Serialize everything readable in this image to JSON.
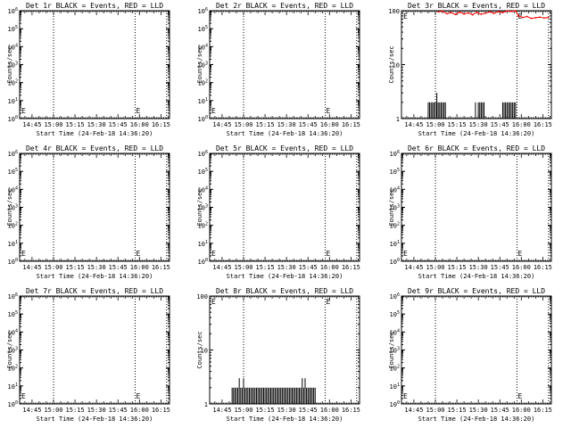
{
  "colors": {
    "background": "#ffffff",
    "events": "#000000",
    "lld": "#ff0000",
    "axis": "#000000"
  },
  "chart_data": [
    {
      "type": "line",
      "title": "Det 1r BLACK = Events, RED = LLD",
      "xlabel": "Start Time (24-Feb-18 14:36:20)",
      "ylabel": "Counts/sec",
      "x_ticks": [
        "14:45",
        "15:00",
        "15:15",
        "15:30",
        "15:45",
        "16:00",
        "16:15"
      ],
      "y_scale": "log",
      "ylim": [
        1,
        1000000
      ],
      "y_tick_labels": [
        "10^0",
        "10^1",
        "10^2",
        "10^3",
        "10^4",
        "10^5",
        "10^6"
      ],
      "grid": false,
      "vertical_dotted_markers": [
        "15:00",
        "15:57",
        "16:19"
      ],
      "marker_letters": [
        {
          "time": "14:36",
          "text": "E"
        },
        {
          "time": "15:57",
          "text": "E"
        }
      ],
      "series": []
    },
    {
      "type": "line",
      "title": "Det 2r BLACK = Events, RED = LLD",
      "xlabel": "Start Time (24-Feb-18 14:36:20)",
      "ylabel": "Counts/sec",
      "x_ticks": [
        "14:45",
        "15:00",
        "15:15",
        "15:30",
        "15:45",
        "16:00",
        "16:15"
      ],
      "y_scale": "log",
      "ylim": [
        1,
        1000000
      ],
      "y_tick_labels": [
        "10^0",
        "10^1",
        "10^2",
        "10^3",
        "10^4",
        "10^5",
        "10^6"
      ],
      "grid": false,
      "vertical_dotted_markers": [
        "15:00",
        "15:57",
        "16:19"
      ],
      "marker_letters": [
        {
          "time": "14:36",
          "text": "E"
        },
        {
          "time": "15:57",
          "text": "E"
        }
      ],
      "series": []
    },
    {
      "type": "line",
      "title": "Det 3r BLACK = Events, RED = LLD",
      "xlabel": "Start Time (24-Feb-18 14:36:20)",
      "ylabel": "Counts/sec",
      "x_ticks": [
        "14:45",
        "15:00",
        "15:15",
        "15:30",
        "15:45",
        "16:00",
        "16:15"
      ],
      "y_scale": "log",
      "ylim": [
        1,
        100
      ],
      "y_tick_labels": [
        "1",
        "10",
        "100"
      ],
      "grid": false,
      "vertical_dotted_markers": [
        "15:00",
        "15:57",
        "16:19"
      ],
      "marker_letters": [
        {
          "time": "14:36",
          "text": "E"
        },
        {
          "time": "15:57",
          "text": "E"
        }
      ],
      "series": [
        {
          "kind": "events",
          "color": "#000000",
          "spikes": [
            {
              "t": "14:55",
              "v": 2
            },
            {
              "t": "14:56",
              "v": 2
            },
            {
              "t": "14:57",
              "v": 2
            },
            {
              "t": "14:58",
              "v": 2
            },
            {
              "t": "14:59",
              "v": 2
            },
            {
              "t": "15:00",
              "v": 2
            },
            {
              "t": "15:01",
              "v": 2
            },
            {
              "t": "15:01",
              "v": 3
            },
            {
              "t": "15:02",
              "v": 2
            },
            {
              "t": "15:03",
              "v": 2
            },
            {
              "t": "15:04",
              "v": 2
            },
            {
              "t": "15:05",
              "v": 2
            },
            {
              "t": "15:06",
              "v": 2
            },
            {
              "t": "15:07",
              "v": 2
            },
            {
              "t": "15:28",
              "v": 2
            },
            {
              "t": "15:30",
              "v": 2
            },
            {
              "t": "15:31",
              "v": 2
            },
            {
              "t": "15:32",
              "v": 2
            },
            {
              "t": "15:33",
              "v": 2
            },
            {
              "t": "15:34",
              "v": 2
            },
            {
              "t": "15:47",
              "v": 2
            },
            {
              "t": "15:48",
              "v": 2
            },
            {
              "t": "15:49",
              "v": 2
            },
            {
              "t": "15:50",
              "v": 2
            },
            {
              "t": "15:51",
              "v": 2
            },
            {
              "t": "15:52",
              "v": 2
            },
            {
              "t": "15:53",
              "v": 2
            },
            {
              "t": "15:54",
              "v": 2
            },
            {
              "t": "15:55",
              "v": 2
            },
            {
              "t": "15:56",
              "v": 2
            }
          ]
        },
        {
          "kind": "lld",
          "color": "#ff0000",
          "points": [
            {
              "t": "15:02",
              "v": 95
            },
            {
              "t": "15:05",
              "v": 98
            },
            {
              "t": "15:08",
              "v": 88
            },
            {
              "t": "15:11",
              "v": 92
            },
            {
              "t": "15:14",
              "v": 85
            },
            {
              "t": "15:17",
              "v": 94
            },
            {
              "t": "15:20",
              "v": 87
            },
            {
              "t": "15:23",
              "v": 91
            },
            {
              "t": "15:26",
              "v": 84
            },
            {
              "t": "15:29",
              "v": 93
            },
            {
              "t": "15:32",
              "v": 86
            },
            {
              "t": "15:35",
              "v": 90
            },
            {
              "t": "15:38",
              "v": 95
            },
            {
              "t": "15:41",
              "v": 89
            },
            {
              "t": "15:44",
              "v": 96
            },
            {
              "t": "15:47",
              "v": 92
            },
            {
              "t": "15:50",
              "v": 99
            },
            {
              "t": "15:53",
              "v": 97
            },
            {
              "t": "15:56",
              "v": 100
            },
            {
              "t": "15:58",
              "v": 80
            },
            {
              "t": "16:01",
              "v": 75
            },
            {
              "t": "16:04",
              "v": 78
            },
            {
              "t": "16:07",
              "v": 72
            },
            {
              "t": "16:10",
              "v": 74
            },
            {
              "t": "16:13",
              "v": 76
            },
            {
              "t": "16:16",
              "v": 73
            },
            {
              "t": "16:19",
              "v": 75
            }
          ]
        }
      ]
    },
    {
      "type": "line",
      "title": "Det 4r BLACK = Events, RED = LLD",
      "xlabel": "Start Time (24-Feb-18 14:36:20)",
      "ylabel": "Counts/sec",
      "x_ticks": [
        "14:45",
        "15:00",
        "15:15",
        "15:30",
        "15:45",
        "16:00",
        "16:15"
      ],
      "y_scale": "log",
      "ylim": [
        1,
        1000000
      ],
      "y_tick_labels": [
        "10^0",
        "10^1",
        "10^2",
        "10^3",
        "10^4",
        "10^5",
        "10^6"
      ],
      "grid": false,
      "vertical_dotted_markers": [
        "15:00",
        "15:57",
        "16:19"
      ],
      "marker_letters": [
        {
          "time": "14:36",
          "text": "E"
        },
        {
          "time": "15:57",
          "text": "E"
        }
      ],
      "series": []
    },
    {
      "type": "line",
      "title": "Det 5r BLACK = Events, RED = LLD",
      "xlabel": "Start Time (24-Feb-18 14:36:20)",
      "ylabel": "Counts/sec",
      "x_ticks": [
        "14:45",
        "15:00",
        "15:15",
        "15:30",
        "15:45",
        "16:00",
        "16:15"
      ],
      "y_scale": "log",
      "ylim": [
        1,
        1000000
      ],
      "y_tick_labels": [
        "10^0",
        "10^1",
        "10^2",
        "10^3",
        "10^4",
        "10^5",
        "10^6"
      ],
      "grid": false,
      "vertical_dotted_markers": [
        "15:00",
        "15:57",
        "16:19"
      ],
      "marker_letters": [
        {
          "time": "14:36",
          "text": "E"
        },
        {
          "time": "15:57",
          "text": "E"
        }
      ],
      "series": []
    },
    {
      "type": "line",
      "title": "Det 6r BLACK = Events, RED = LLD",
      "xlabel": "Start Time (24-Feb-18 14:36:20)",
      "ylabel": "Counts/sec",
      "x_ticks": [
        "14:45",
        "15:00",
        "15:15",
        "15:30",
        "15:45",
        "16:00",
        "16:15"
      ],
      "y_scale": "log",
      "ylim": [
        1,
        1000000
      ],
      "y_tick_labels": [
        "10^0",
        "10^1",
        "10^2",
        "10^3",
        "10^4",
        "10^5",
        "10^6"
      ],
      "grid": false,
      "vertical_dotted_markers": [
        "15:00",
        "15:57",
        "16:19"
      ],
      "marker_letters": [
        {
          "time": "14:36",
          "text": "E"
        },
        {
          "time": "15:57",
          "text": "E"
        }
      ],
      "series": []
    },
    {
      "type": "line",
      "title": "Det 7r BLACK = Events, RED = LLD",
      "xlabel": "Start Time (24-Feb-18 14:36:20)",
      "ylabel": "Counts/sec",
      "x_ticks": [
        "14:45",
        "15:00",
        "15:15",
        "15:30",
        "15:45",
        "16:00",
        "16:15"
      ],
      "y_scale": "log",
      "ylim": [
        1,
        1000000
      ],
      "y_tick_labels": [
        "10^0",
        "10^1",
        "10^2",
        "10^3",
        "10^4",
        "10^5",
        "10^6"
      ],
      "grid": false,
      "vertical_dotted_markers": [
        "15:00",
        "15:57",
        "16:19"
      ],
      "marker_letters": [
        {
          "time": "14:36",
          "text": "E"
        },
        {
          "time": "15:57",
          "text": "E"
        }
      ],
      "series": []
    },
    {
      "type": "line",
      "title": "Det 8r BLACK = Events, RED = LLD",
      "xlabel": "Start Time (24-Feb-18 14:36:20)",
      "ylabel": "Counts/sec",
      "x_ticks": [
        "14:45",
        "15:00",
        "15:15",
        "15:30",
        "15:45",
        "16:00",
        "16:15"
      ],
      "y_scale": "log",
      "ylim": [
        1,
        100
      ],
      "y_tick_labels": [
        "1",
        "10",
        "100"
      ],
      "grid": false,
      "vertical_dotted_markers": [
        "15:00",
        "15:57",
        "16:19"
      ],
      "marker_letters": [
        {
          "time": "14:36",
          "text": "E"
        },
        {
          "time": "15:57",
          "text": "E"
        }
      ],
      "series": [
        {
          "kind": "events",
          "color": "#000000",
          "spikes": [
            {
              "t": "14:52",
              "v": 2
            },
            {
              "t": "14:53",
              "v": 2
            },
            {
              "t": "14:54",
              "v": 2
            },
            {
              "t": "14:55",
              "v": 2
            },
            {
              "t": "14:56",
              "v": 2
            },
            {
              "t": "14:57",
              "v": 3
            },
            {
              "t": "14:58",
              "v": 2
            },
            {
              "t": "14:59",
              "v": 2
            },
            {
              "t": "15:00",
              "v": 3
            },
            {
              "t": "15:01",
              "v": 2
            },
            {
              "t": "15:02",
              "v": 2
            },
            {
              "t": "15:03",
              "v": 2
            },
            {
              "t": "15:04",
              "v": 2
            },
            {
              "t": "15:05",
              "v": 2
            },
            {
              "t": "15:06",
              "v": 2
            },
            {
              "t": "15:07",
              "v": 2
            },
            {
              "t": "15:08",
              "v": 2
            },
            {
              "t": "15:09",
              "v": 2
            },
            {
              "t": "15:10",
              "v": 2
            },
            {
              "t": "15:11",
              "v": 2
            },
            {
              "t": "15:12",
              "v": 2
            },
            {
              "t": "15:13",
              "v": 2
            },
            {
              "t": "15:14",
              "v": 2
            },
            {
              "t": "15:15",
              "v": 2
            },
            {
              "t": "15:16",
              "v": 2
            },
            {
              "t": "15:17",
              "v": 2
            },
            {
              "t": "15:18",
              "v": 2
            },
            {
              "t": "15:19",
              "v": 2
            },
            {
              "t": "15:20",
              "v": 2
            },
            {
              "t": "15:21",
              "v": 2
            },
            {
              "t": "15:22",
              "v": 2
            },
            {
              "t": "15:23",
              "v": 2
            },
            {
              "t": "15:24",
              "v": 2
            },
            {
              "t": "15:25",
              "v": 2
            },
            {
              "t": "15:26",
              "v": 2
            },
            {
              "t": "15:27",
              "v": 2
            },
            {
              "t": "15:28",
              "v": 2
            },
            {
              "t": "15:29",
              "v": 2
            },
            {
              "t": "15:30",
              "v": 2
            },
            {
              "t": "15:31",
              "v": 2
            },
            {
              "t": "15:32",
              "v": 2
            },
            {
              "t": "15:33",
              "v": 2
            },
            {
              "t": "15:34",
              "v": 2
            },
            {
              "t": "15:35",
              "v": 2
            },
            {
              "t": "15:36",
              "v": 2
            },
            {
              "t": "15:37",
              "v": 2
            },
            {
              "t": "15:38",
              "v": 2
            },
            {
              "t": "15:39",
              "v": 2
            },
            {
              "t": "15:40",
              "v": 2
            },
            {
              "t": "15:41",
              "v": 3
            },
            {
              "t": "15:42",
              "v": 2
            },
            {
              "t": "15:43",
              "v": 3
            },
            {
              "t": "15:44",
              "v": 2
            },
            {
              "t": "15:45",
              "v": 2
            },
            {
              "t": "15:46",
              "v": 2
            },
            {
              "t": "15:47",
              "v": 2
            },
            {
              "t": "15:48",
              "v": 2
            },
            {
              "t": "15:49",
              "v": 2
            },
            {
              "t": "15:50",
              "v": 2
            }
          ]
        }
      ]
    },
    {
      "type": "line",
      "title": "Det 9r BLACK = Events, RED = LLD",
      "xlabel": "Start Time (24-Feb-18 14:36:20)",
      "ylabel": "Counts/sec",
      "x_ticks": [
        "14:45",
        "15:00",
        "15:15",
        "15:30",
        "15:45",
        "16:00",
        "16:15"
      ],
      "y_scale": "log",
      "ylim": [
        1,
        1000000
      ],
      "y_tick_labels": [
        "10^0",
        "10^1",
        "10^2",
        "10^3",
        "10^4",
        "10^5",
        "10^6"
      ],
      "grid": false,
      "vertical_dotted_markers": [
        "15:00",
        "15:57",
        "16:19"
      ],
      "marker_letters": [
        {
          "time": "14:36",
          "text": "E"
        },
        {
          "time": "15:57",
          "text": "E"
        }
      ],
      "series": []
    }
  ]
}
